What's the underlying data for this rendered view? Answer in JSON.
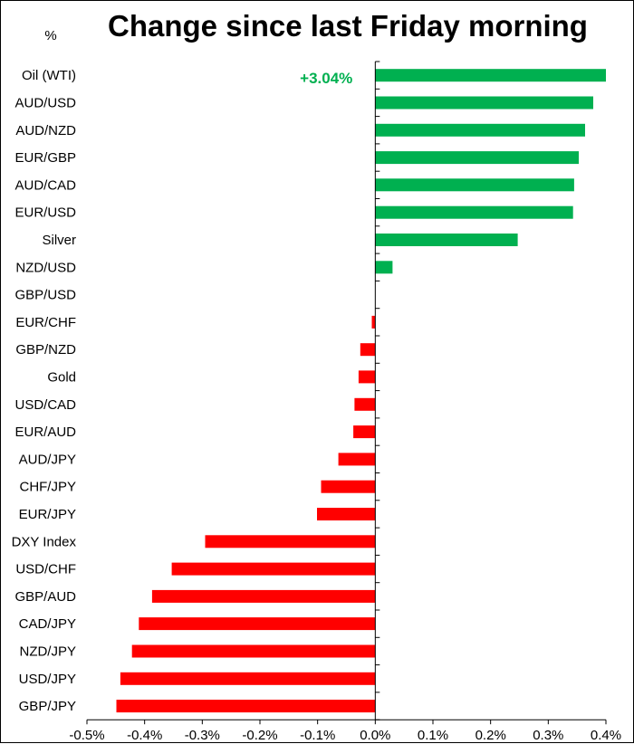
{
  "chart_data": {
    "type": "bar",
    "orientation": "horizontal",
    "title": "Change since last Friday morning",
    "unit_label": "%",
    "categories": [
      "Oil (WTI)",
      "AUD/USD",
      "AUD/NZD",
      "EUR/GBP",
      "AUD/CAD",
      "EUR/USD",
      "Silver",
      "NZD/USD",
      "GBP/USD",
      "EUR/CHF",
      "GBP/NZD",
      "Gold",
      "USD/CAD",
      "EUR/AUD",
      "AUD/JPY",
      "CHF/JPY",
      "EUR/JPY",
      "DXY Index",
      "USD/CHF",
      "GBP/AUD",
      "CAD/JPY",
      "NZD/JPY",
      "USD/JPY",
      "GBP/JPY"
    ],
    "values": [
      0.4,
      0.378,
      0.364,
      0.353,
      0.345,
      0.343,
      0.247,
      0.03,
      0.0,
      -0.006,
      -0.026,
      -0.029,
      -0.036,
      -0.038,
      -0.064,
      -0.094,
      -0.101,
      -0.295,
      -0.353,
      -0.387,
      -0.41,
      -0.422,
      -0.442,
      -0.449
    ],
    "annotations": [
      {
        "category": "Oil (WTI)",
        "text": "+3.04%"
      }
    ],
    "xlim": [
      -0.5,
      0.4
    ],
    "xticks": [
      -0.5,
      -0.4,
      -0.3,
      -0.2,
      -0.1,
      0.0,
      0.1,
      0.2,
      0.3,
      0.4
    ],
    "xtick_labels": [
      "-0.5%",
      "-0.4%",
      "-0.3%",
      "-0.2%",
      "-0.1%",
      "0.0%",
      "0.1%",
      "0.2%",
      "0.3%",
      "0.4%"
    ],
    "grid": false,
    "legend": "none",
    "colors": {
      "positive": "#00b050",
      "negative": "#ff0000",
      "annotation": "#00b050",
      "axis": "#000000"
    }
  }
}
